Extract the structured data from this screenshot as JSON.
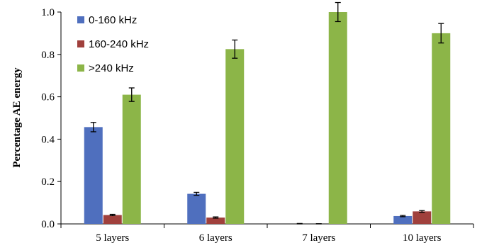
{
  "chart_data": {
    "type": "bar",
    "title": "",
    "xlabel": "",
    "ylabel": "Percentage AE energy",
    "ylim": [
      0,
      1.0
    ],
    "yticks": [
      "0.0",
      "0.2",
      "0.4",
      "0.6",
      "0.8",
      "1.0"
    ],
    "categories": [
      "5 layers",
      "6 layers",
      "7 layers",
      "10 layers"
    ],
    "series": [
      {
        "name": "0-160 kHz",
        "color": "#4F6FBE",
        "values": [
          0.457,
          0.142,
          0.0,
          0.037
        ],
        "errors": [
          0.022,
          0.007,
          0.002,
          0.003
        ]
      },
      {
        "name": "160-240 kHz",
        "color": "#A0403C",
        "values": [
          0.042,
          0.03,
          0.0,
          0.059
        ],
        "errors": [
          0.003,
          0.003,
          0.001,
          0.004
        ]
      },
      {
        "name": ">240 kHz",
        "color": "#8CB548",
        "values": [
          0.61,
          0.825,
          1.0,
          0.9
        ],
        "errors": [
          0.032,
          0.043,
          0.045,
          0.046
        ]
      }
    ],
    "grid": false,
    "legend_position": "top-left"
  }
}
